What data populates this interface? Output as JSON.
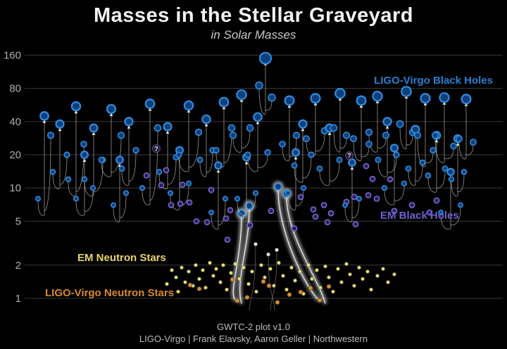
{
  "header": {
    "title": "Masses in the Stellar Graveyard",
    "subtitle": "in Solar Masses"
  },
  "legends": {
    "ligo_bh": {
      "label": "LIGO-Virgo Black Holes",
      "color": "#2a7fd4"
    },
    "em_bh": {
      "label": "EM Black Holes",
      "color": "#6f5fd0"
    },
    "em_ns": {
      "label": "EM Neutron Stars",
      "color": "#e8d46a"
    },
    "ligo_ns": {
      "label": "LIGO-Virgo Neutron Stars",
      "color": "#d98a2b"
    }
  },
  "footer": {
    "version": "GWTC-2 plot v1.0",
    "credits": "LIGO-Virgo | Frank Elavsky, Aaron Geller | Northwestern"
  },
  "chart_data": {
    "type": "scatter",
    "title": "Masses in the Stellar Graveyard",
    "subtitle": "in Solar Masses",
    "ylabel": "Solar Masses",
    "xlabel": "",
    "x_axis_note": "arbitrary event arrangement (pixel x, no scale shown)",
    "y_axis": {
      "scale": "log",
      "ticks": [
        160,
        80,
        40,
        20,
        10,
        5,
        2,
        1
      ],
      "range": [
        0.8,
        200
      ],
      "grid": true
    },
    "colors": {
      "bh_ring": "#2e8ce0",
      "bh_fill": "#0d3f7a",
      "embh_ring": "#7d6ad8",
      "embh_fill": "#2a2058",
      "emns_fill": "#ece287",
      "emns_ring": "#a39a3f",
      "lvns_fill": "#d98e38",
      "lvns_ring": "#7a4d15",
      "trail": "#cfc6b8",
      "grid": "#3a3a3a",
      "tick_text": "#b0b0b0",
      "glow": "#ffffff",
      "white_dot": "#e8e8e8",
      "qmark_fill": "#221b38",
      "qmark_ring": "#584a85"
    },
    "ligo_virgo_bh_mergers": {
      "note": "each entry: [x, final_mass, progenitor1_mass, progenitor2_mass] in solar masses",
      "events": [
        [
          63,
          45,
          8,
          30
        ],
        [
          85,
          38,
          14,
          20
        ],
        [
          108,
          55,
          12,
          25
        ],
        [
          120,
          20,
          8,
          10
        ],
        [
          133,
          35,
          12,
          18
        ],
        [
          158,
          52,
          18,
          30
        ],
        [
          170,
          18,
          7,
          9
        ],
        [
          183,
          40,
          15,
          22
        ],
        [
          213,
          58,
          10,
          35
        ],
        [
          238,
          36,
          14,
          19
        ],
        [
          255,
          22,
          9,
          11
        ],
        [
          268,
          56,
          20,
          32
        ],
        [
          293,
          42,
          18,
          22
        ],
        [
          310,
          16,
          6,
          8
        ],
        [
          318,
          60,
          22,
          35
        ],
        [
          343,
          70,
          30,
          35
        ],
        [
          350,
          19,
          8,
          9
        ],
        [
          366,
          44,
          20,
          21
        ],
        [
          377,
          150,
          85,
          66
        ],
        [
          411,
          62,
          25,
          30
        ],
        [
          420,
          21,
          9,
          10
        ],
        [
          430,
          38,
          16,
          20
        ],
        [
          448,
          65,
          28,
          33
        ],
        [
          468,
          35,
          15,
          18
        ],
        [
          483,
          72,
          35,
          30
        ],
        [
          500,
          17,
          7,
          8
        ],
        [
          513,
          62,
          28,
          25
        ],
        [
          536,
          68,
          32,
          30
        ],
        [
          550,
          40,
          18,
          20
        ],
        [
          560,
          23,
          10,
          11
        ],
        [
          577,
          75,
          38,
          32
        ],
        [
          590,
          34,
          15,
          17
        ],
        [
          604,
          65,
          30,
          22
        ],
        [
          620,
          30,
          13,
          15
        ],
        [
          631,
          66,
          30,
          24
        ],
        [
          640,
          14,
          6,
          7
        ],
        [
          650,
          28,
          12,
          14
        ],
        [
          662,
          64,
          28,
          26
        ]
      ]
    },
    "highlighted_ns_mergers": {
      "note": "glowing trails; [x1,m1,x2,m2,bottom_x,bottom_m]",
      "events": [
        [
          343,
          5.9,
          354,
          6.9,
          336,
          0.95
        ],
        [
          395,
          10.3,
          407,
          8.9,
          455,
          0.95
        ]
      ]
    },
    "mass_gap_objects": {
      "note": "question-mark markers; [x, mass]",
      "points": [
        [
          222,
          22.8
        ],
        [
          496,
          19.7
        ]
      ]
    },
    "white_remnants": {
      "note": "small pale remnant dots with thin trails; [x, mass]",
      "points": [
        [
          363,
          3.1
        ],
        [
          381,
          2.5
        ],
        [
          393,
          2.75
        ]
      ]
    },
    "em_black_holes": [
      [
        208,
        13
      ],
      [
        236,
        14.5
      ],
      [
        229,
        10.6
      ],
      [
        259,
        10.7
      ],
      [
        243,
        7
      ],
      [
        256,
        7.2
      ],
      [
        269,
        7.4
      ],
      [
        279,
        5
      ],
      [
        294,
        4.9
      ],
      [
        321,
        5.3
      ],
      [
        327,
        6.3
      ],
      [
        300,
        9.6
      ],
      [
        355,
        4.6
      ],
      [
        385,
        6.2
      ],
      [
        418,
        4.3
      ],
      [
        427,
        8.3
      ],
      [
        445,
        6.4
      ],
      [
        460,
        7
      ],
      [
        470,
        5.9
      ],
      [
        448,
        5.5
      ],
      [
        465,
        4.9
      ],
      [
        492,
        7.5
      ],
      [
        503,
        8.3
      ],
      [
        523,
        8.6
      ],
      [
        535,
        8
      ],
      [
        520,
        15.8
      ],
      [
        529,
        12.1
      ],
      [
        554,
        12
      ],
      [
        505,
        4.7
      ],
      [
        560,
        6.2
      ],
      [
        585,
        7
      ],
      [
        610,
        6
      ],
      [
        620,
        7.7
      ],
      [
        323,
        3.4
      ]
    ],
    "em_neutron_stars": [
      [
        237,
        1.35
      ],
      [
        244,
        1.8
      ],
      [
        250,
        1.55
      ],
      [
        253,
        1.15
      ],
      [
        258,
        1.9
      ],
      [
        263,
        1.4
      ],
      [
        268,
        1.75
      ],
      [
        274,
        1.3
      ],
      [
        278,
        2.0
      ],
      [
        283,
        1.5
      ],
      [
        288,
        1.8
      ],
      [
        292,
        1.25
      ],
      [
        298,
        2.1
      ],
      [
        303,
        1.6
      ],
      [
        307,
        1.85
      ],
      [
        313,
        1.4
      ],
      [
        317,
        2.0
      ],
      [
        322,
        1.2
      ],
      [
        328,
        1.7
      ],
      [
        334,
        2.05
      ],
      [
        340,
        1.5
      ],
      [
        346,
        1.9
      ],
      [
        353,
        1.35
      ],
      [
        358,
        1.75
      ],
      [
        364,
        1.15
      ],
      [
        371,
        2.0
      ],
      [
        376,
        1.55
      ],
      [
        384,
        1.85
      ],
      [
        389,
        1.3
      ],
      [
        396,
        2.1
      ],
      [
        402,
        1.6
      ],
      [
        407,
        1.2
      ],
      [
        414,
        1.9
      ],
      [
        419,
        1.45
      ],
      [
        426,
        1.75
      ],
      [
        431,
        1.1
      ],
      [
        438,
        2.0
      ],
      [
        443,
        1.5
      ],
      [
        450,
        1.8
      ],
      [
        455,
        1.25
      ],
      [
        462,
        1.95
      ],
      [
        467,
        1.55
      ],
      [
        473,
        1.15
      ],
      [
        480,
        1.85
      ],
      [
        485,
        1.4
      ],
      [
        492,
        2.05
      ],
      [
        497,
        1.65
      ],
      [
        503,
        1.3
      ],
      [
        510,
        1.9
      ],
      [
        515,
        1.5
      ],
      [
        522,
        1.75
      ],
      [
        527,
        1.2
      ],
      [
        536,
        1.6
      ],
      [
        544,
        1.85
      ],
      [
        551,
        1.4
      ],
      [
        560,
        1.65
      ]
    ],
    "ligo_virgo_neutron_stars": [
      [
        270,
        1.32
      ],
      [
        283,
        1.22
      ],
      [
        330,
        1.48
      ],
      [
        337,
        0.95
      ],
      [
        351,
        1.02
      ],
      [
        374,
        1.42
      ],
      [
        382,
        1.3
      ],
      [
        394,
        0.92
      ],
      [
        411,
        1.08
      ],
      [
        427,
        1.14
      ],
      [
        441,
        1.24
      ],
      [
        454,
        0.96
      ],
      [
        467,
        1.28
      ]
    ]
  }
}
